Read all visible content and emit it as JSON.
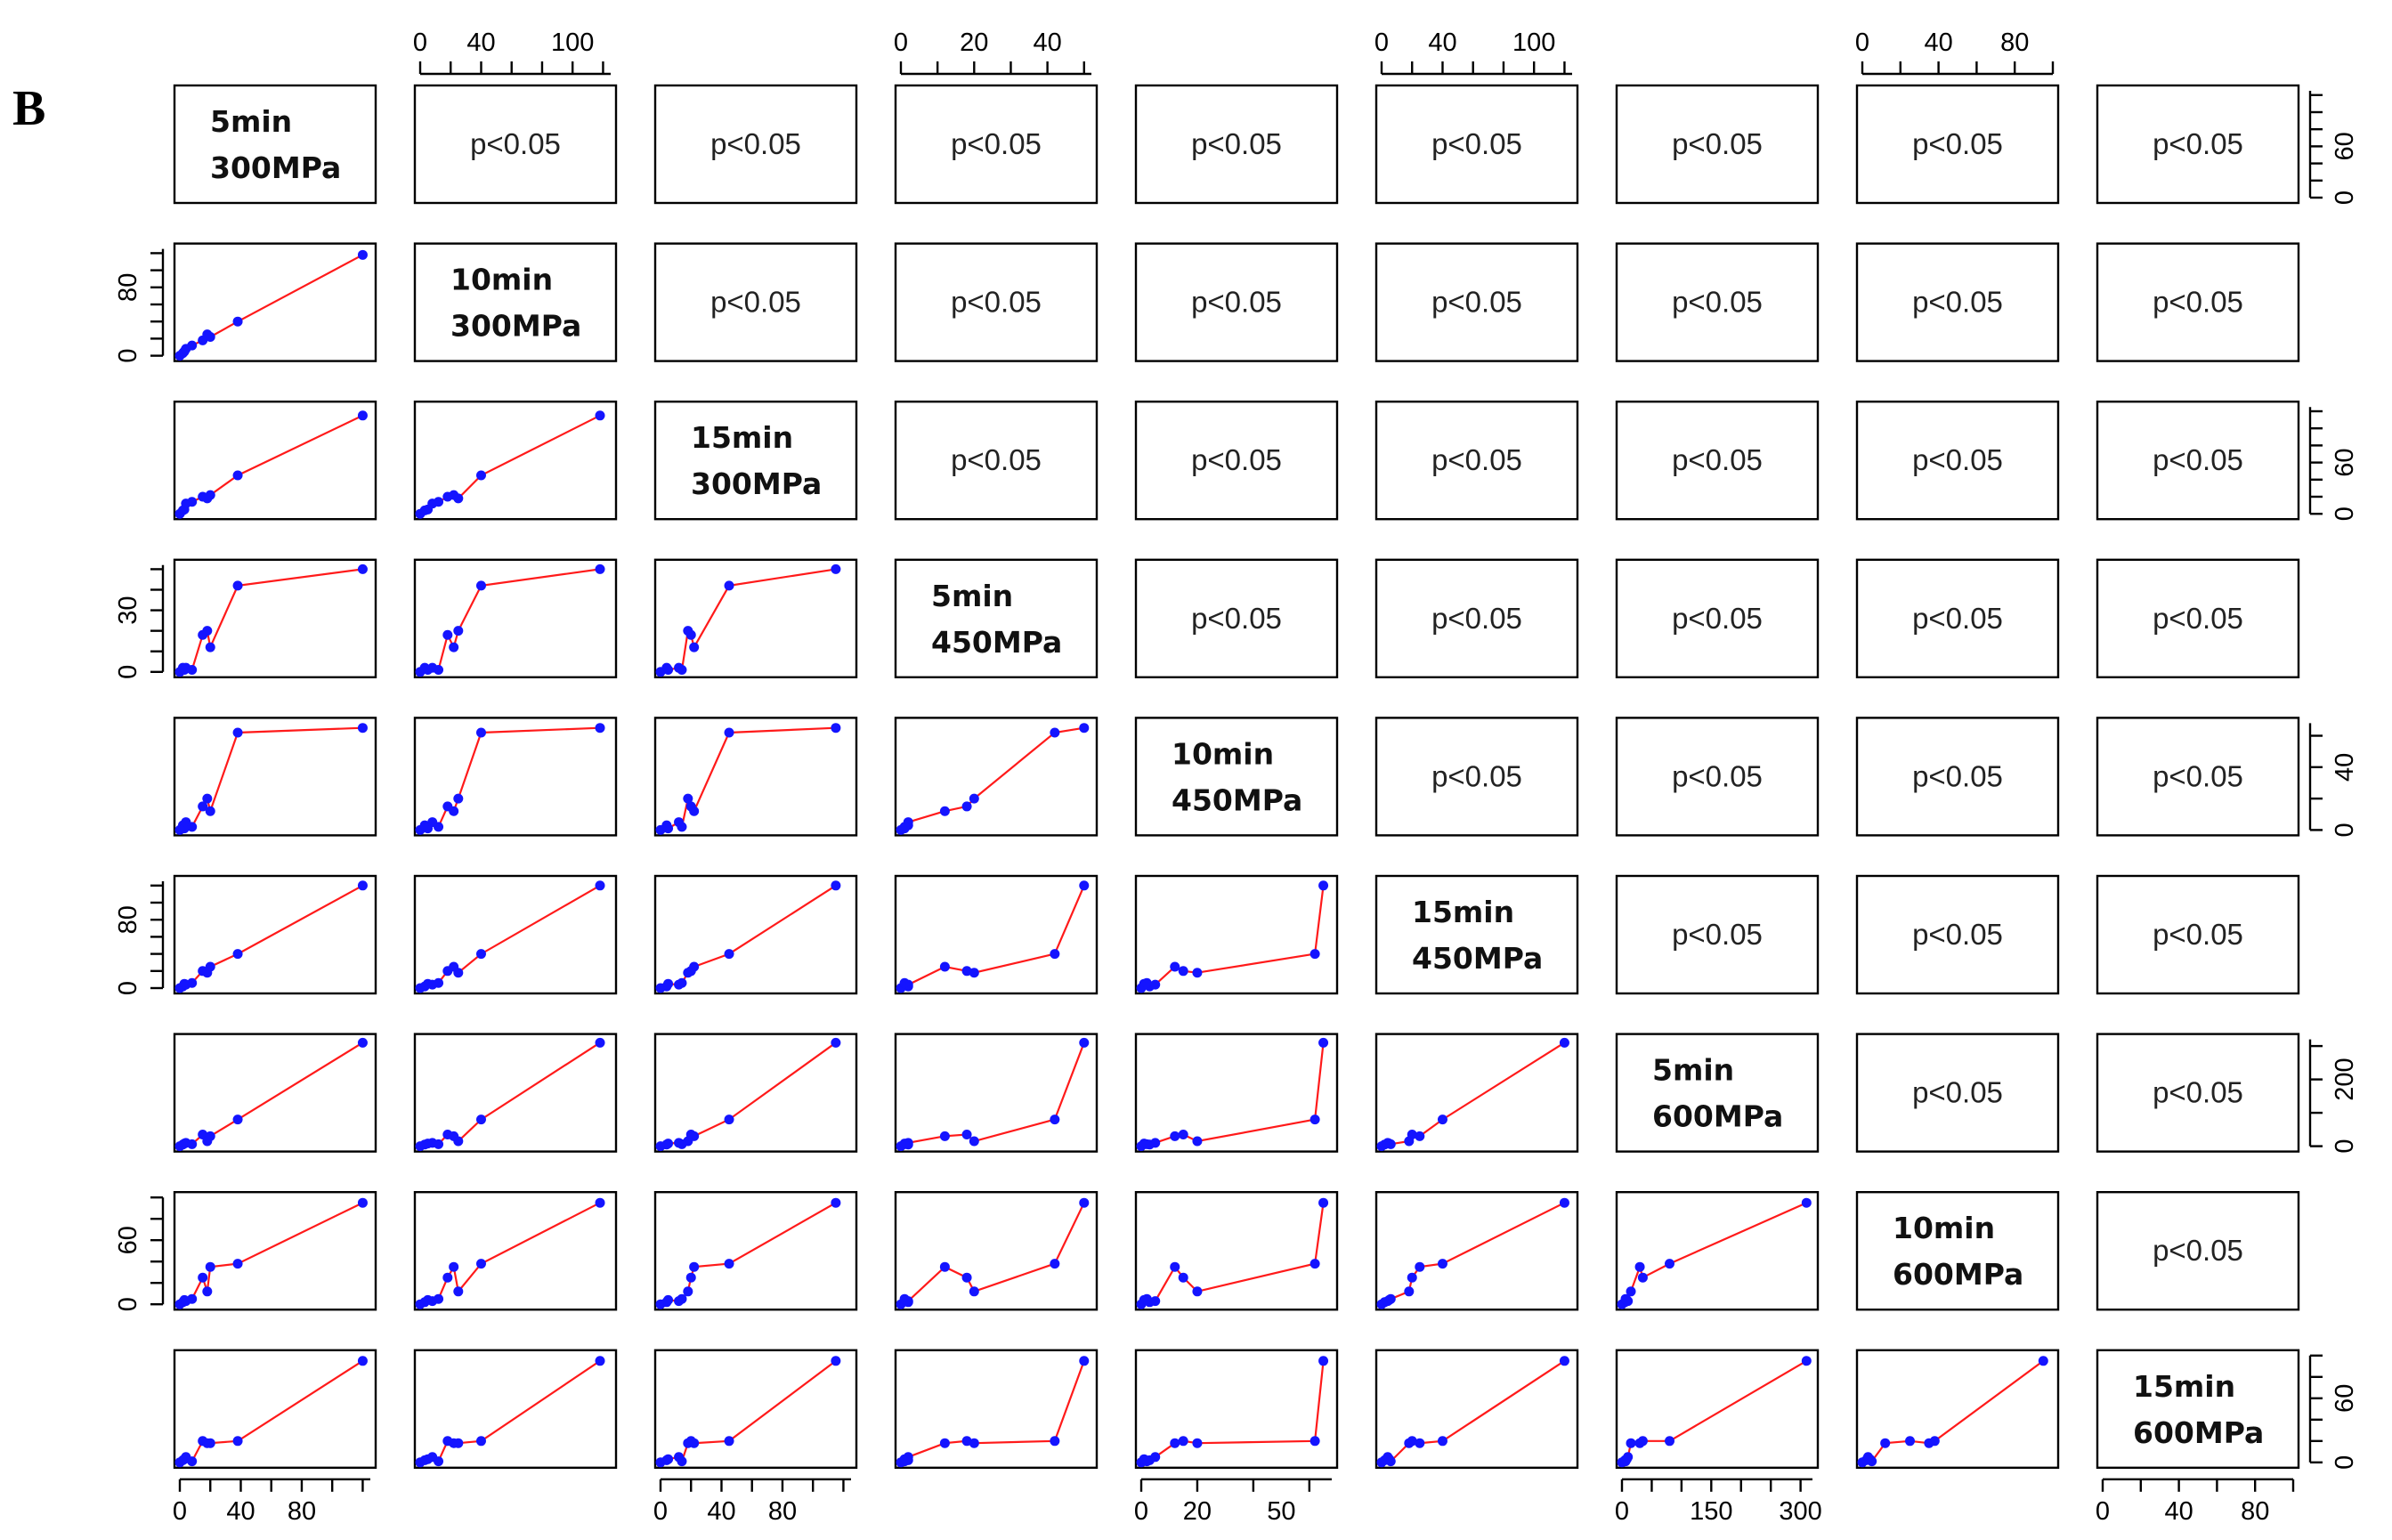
{
  "figure": {
    "panel_letter": "B",
    "colors": {
      "points": "#1414ff",
      "fit": "#ff1a1a",
      "frame": "#000000"
    }
  },
  "chart_data": {
    "type": "scatter",
    "title": "",
    "n": 9,
    "variables": [
      "5min\n300MPa",
      "10min\n300MPa",
      "15min\n300MPa",
      "5min\n450MPa",
      "10min\n450MPa",
      "15min\n450MPa",
      "5min\n600MPa",
      "10min\n600MPa",
      "15min\n600MPa"
    ],
    "ranges": [
      [
        0,
        125
      ],
      [
        0,
        125
      ],
      [
        0,
        125
      ],
      [
        0,
        52
      ],
      [
        0,
        68
      ],
      [
        0,
        125
      ],
      [
        0,
        320
      ],
      [
        0,
        100
      ],
      [
        0,
        100
      ]
    ],
    "upper_panel_text": "p<0.05",
    "lower_panel": "scatter with red lowess smoothing line",
    "observations": [
      [
        0,
        0,
        0,
        0,
        0,
        0,
        0,
        0,
        0
      ],
      [
        2,
        3,
        4,
        2,
        3,
        2,
        5,
        2,
        2
      ],
      [
        3,
        5,
        5,
        1,
        1,
        5,
        8,
        4,
        3
      ],
      [
        15,
        18,
        20,
        18,
        15,
        20,
        35,
        25,
        20
      ],
      [
        20,
        22,
        22,
        12,
        12,
        25,
        30,
        35,
        18
      ],
      [
        4,
        8,
        12,
        2,
        5,
        4,
        10,
        3,
        5
      ],
      [
        18,
        25,
        18,
        20,
        20,
        18,
        15,
        12,
        18
      ],
      [
        8,
        12,
        14,
        1,
        2,
        6,
        6,
        5,
        1
      ],
      [
        38,
        40,
        45,
        42,
        62,
        40,
        80,
        38,
        20
      ],
      [
        120,
        118,
        115,
        50,
        65,
        120,
        310,
        95,
        95
      ]
    ],
    "axes": {
      "top": [
        {
          "column": 2,
          "ticks": [
            "0",
            "40",
            "100"
          ]
        },
        {
          "column": 4,
          "ticks": [
            "0",
            "20",
            "40"
          ]
        },
        {
          "column": 6,
          "ticks": [
            "0",
            "40",
            "100"
          ]
        },
        {
          "column": 8,
          "ticks": [
            "0",
            "40",
            "80"
          ]
        }
      ],
      "bottom": [
        {
          "column": 1,
          "ticks": [
            "0",
            "40",
            "80"
          ]
        },
        {
          "column": 3,
          "ticks": [
            "0",
            "40",
            "80"
          ]
        },
        {
          "column": 5,
          "ticks": [
            "0",
            "20",
            "50"
          ]
        },
        {
          "column": 7,
          "ticks": [
            "0",
            "150",
            "300"
          ]
        },
        {
          "column": 9,
          "ticks": [
            "0",
            "40",
            "80"
          ]
        }
      ],
      "left": [
        {
          "row": 2,
          "ticks": [
            "0",
            "80"
          ]
        },
        {
          "row": 4,
          "ticks": [
            "0",
            "30"
          ]
        },
        {
          "row": 6,
          "ticks": [
            "0",
            "80"
          ]
        },
        {
          "row": 8,
          "ticks": [
            "0",
            "60"
          ]
        }
      ],
      "right": [
        {
          "row": 1,
          "ticks": [
            "0",
            "60"
          ]
        },
        {
          "row": 3,
          "ticks": [
            "0",
            "60"
          ]
        },
        {
          "row": 5,
          "ticks": [
            "0",
            "40"
          ]
        },
        {
          "row": 7,
          "ticks": [
            "0",
            "200"
          ]
        },
        {
          "row": 9,
          "ticks": [
            "0",
            "60"
          ]
        }
      ]
    }
  }
}
